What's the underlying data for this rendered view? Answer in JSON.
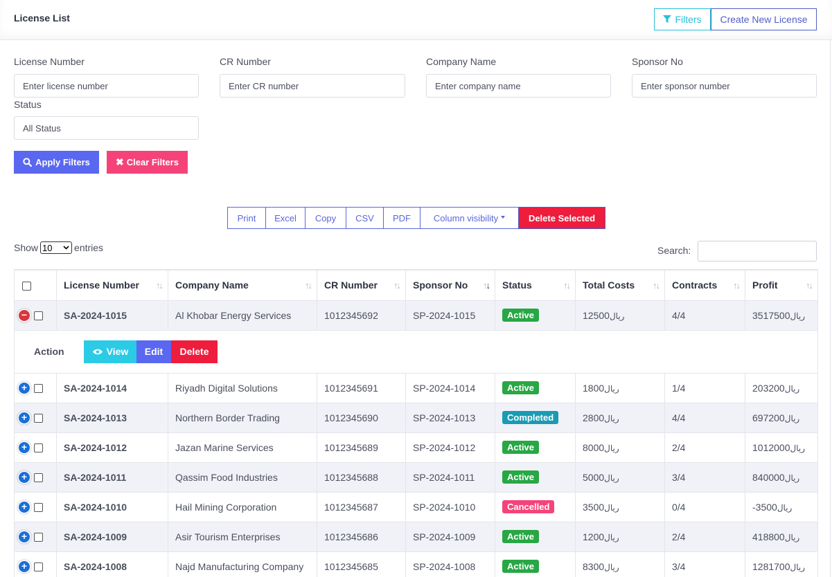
{
  "header": {
    "title": "License List",
    "filters_button": "Filters",
    "create_button": "Create New License"
  },
  "filters": {
    "license_number": {
      "label": "License Number",
      "placeholder": "Enter license number"
    },
    "cr_number": {
      "label": "CR Number",
      "placeholder": "Enter CR number"
    },
    "company_name": {
      "label": "Company Name",
      "placeholder": "Enter company name"
    },
    "sponsor_no": {
      "label": "Sponsor No",
      "placeholder": "Enter sponsor number"
    },
    "status": {
      "label": "Status",
      "value": "All Status"
    },
    "apply_button": "Apply Filters",
    "clear_button": "Clear Filters"
  },
  "datatable_buttons": [
    "Print",
    "Excel",
    "Copy",
    "CSV",
    "PDF",
    "Column visibility",
    "Delete Selected"
  ],
  "length": {
    "show": "Show",
    "value": "10",
    "entries": "entries"
  },
  "search": {
    "label": "Search:"
  },
  "columns": [
    "License Number",
    "Company Name",
    "CR Number",
    "Sponsor No",
    "Status",
    "Total Costs",
    "Contracts",
    "Profit"
  ],
  "currency_symbol": "ريال",
  "status_colors": {
    "Active": "#28a745",
    "Completed": "#1a9bb3",
    "Cancelled": "#f5437a"
  },
  "rows": [
    {
      "license": "SA-2024-1015",
      "company": "Al Khobar Energy Services",
      "cr": "1012345692",
      "sponsor": "SP-2024-1015",
      "status": "Active",
      "costs": "12500",
      "contracts": "4/4",
      "profit": "3517500",
      "expanded": true
    },
    {
      "license": "SA-2024-1014",
      "company": "Riyadh Digital Solutions",
      "cr": "1012345691",
      "sponsor": "SP-2024-1014",
      "status": "Active",
      "costs": "1800",
      "contracts": "1/4",
      "profit": "203200"
    },
    {
      "license": "SA-2024-1013",
      "company": "Northern Border Trading",
      "cr": "1012345690",
      "sponsor": "SP-2024-1013",
      "status": "Completed",
      "costs": "2800",
      "contracts": "4/4",
      "profit": "697200"
    },
    {
      "license": "SA-2024-1012",
      "company": "Jazan Marine Services",
      "cr": "1012345689",
      "sponsor": "SP-2024-1012",
      "status": "Active",
      "costs": "8000",
      "contracts": "2/4",
      "profit": "1012000"
    },
    {
      "license": "SA-2024-1011",
      "company": "Qassim Food Industries",
      "cr": "1012345688",
      "sponsor": "SP-2024-1011",
      "status": "Active",
      "costs": "5000",
      "contracts": "3/4",
      "profit": "840000"
    },
    {
      "license": "SA-2024-1010",
      "company": "Hail Mining Corporation",
      "cr": "1012345687",
      "sponsor": "SP-2024-1010",
      "status": "Cancelled",
      "costs": "3500",
      "contracts": "0/4",
      "profit": "-3500"
    },
    {
      "license": "SA-2024-1009",
      "company": "Asir Tourism Enterprises",
      "cr": "1012345686",
      "sponsor": "SP-2024-1009",
      "status": "Active",
      "costs": "1200",
      "contracts": "2/4",
      "profit": "418800"
    },
    {
      "license": "SA-2024-1008",
      "company": "Najd Manufacturing Company",
      "cr": "1012345685",
      "sponsor": "SP-2024-1008",
      "status": "Active",
      "costs": "8300",
      "contracts": "3/4",
      "profit": "1281700"
    }
  ],
  "child_row": {
    "label": "Action",
    "view": "View",
    "edit": "Edit",
    "delete": "Delete"
  }
}
